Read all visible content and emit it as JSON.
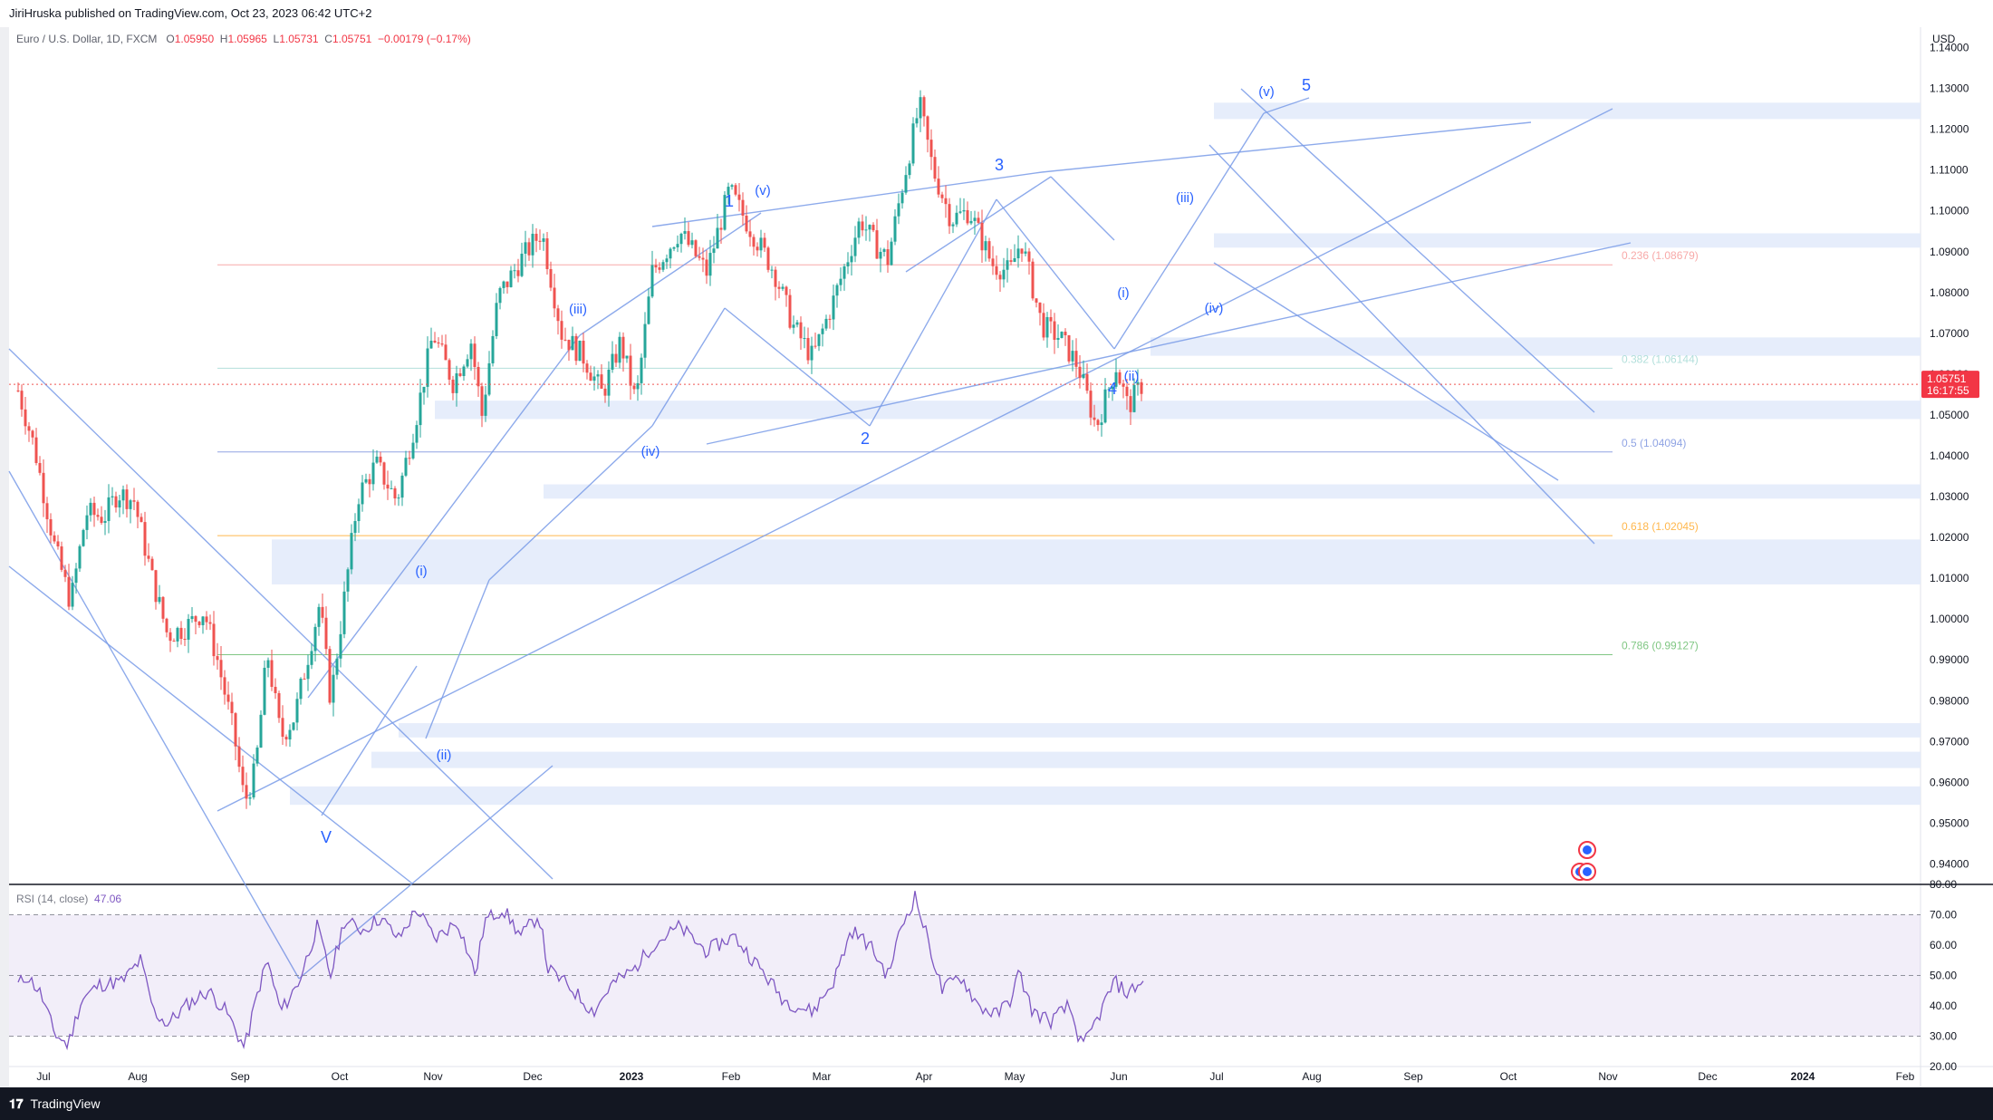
{
  "header": {
    "published_by": "JiriHruska published on TradingView.com, Oct 23, 2023 06:42 UTC+2"
  },
  "legend": {
    "symbol": "Euro / U.S. Dollar, 1D, FXCM",
    "o_label": "O",
    "o": "1.05950",
    "h_label": "H",
    "h": "1.05965",
    "l_label": "L",
    "l": "1.05731",
    "c_label": "C",
    "c": "1.05751",
    "change": "−0.00179 (−0.17%)"
  },
  "currency": "USD",
  "rsi": {
    "label": "RSI (14, close)",
    "value": "47.06"
  },
  "footer": {
    "logo": "𝟏𝟕",
    "brand": "TradingView"
  },
  "colors": {
    "up": "#26a69a",
    "down": "#ef5350",
    "accent": "#2962ff",
    "rsi": "#7e57c2",
    "zone": "#e3ebfb"
  },
  "chart_data": [
    {
      "type": "candlestick",
      "symbol": "EURUSD",
      "timeframe": "1D",
      "ylim": [
        0.935,
        1.145
      ],
      "y_ticks": [
        "1.14000",
        "1.13000",
        "1.12000",
        "1.11000",
        "1.10000",
        "1.09000",
        "1.08000",
        "1.07000",
        "1.06000",
        "1.05000",
        "1.04000",
        "1.03000",
        "1.02000",
        "1.01000",
        "1.00000",
        "0.99000",
        "0.98000",
        "0.97000",
        "0.96000",
        "0.95000",
        "0.94000"
      ],
      "x_ticks": [
        "Jul",
        "Aug",
        "Sep",
        "Oct",
        "Nov",
        "Dec",
        "2023",
        "Feb",
        "Mar",
        "Apr",
        "May",
        "Jun",
        "Jul",
        "Aug",
        "Sep",
        "Oct",
        "Nov",
        "Dec",
        "2024",
        "Feb"
      ],
      "current_price": {
        "value": "1.05751",
        "countdown": "16:17:55"
      },
      "price_path": [
        [
          0,
          1.056
        ],
        [
          18,
          1.042
        ],
        [
          40,
          1.018
        ],
        [
          58,
          1.004
        ],
        [
          75,
          1.026
        ],
        [
          95,
          1.025
        ],
        [
          110,
          1.031
        ],
        [
          128,
          1.029
        ],
        [
          148,
          1.01
        ],
        [
          165,
          0.996
        ],
        [
          185,
          0.998
        ],
        [
          205,
          1.002
        ],
        [
          220,
          0.99
        ],
        [
          238,
          0.972
        ],
        [
          250,
          0.955
        ],
        [
          262,
          0.963
        ],
        [
          275,
          0.992
        ],
        [
          290,
          0.971
        ],
        [
          305,
          0.976
        ],
        [
          320,
          0.991
        ],
        [
          333,
          1.004
        ],
        [
          345,
          0.98
        ],
        [
          360,
          1.005
        ],
        [
          375,
          1.03
        ],
        [
          395,
          1.038
        ],
        [
          418,
          1.029
        ],
        [
          440,
          1.05
        ],
        [
          458,
          1.07
        ],
        [
          480,
          1.058
        ],
        [
          500,
          1.068
        ],
        [
          512,
          1.05
        ],
        [
          530,
          1.079
        ],
        [
          555,
          1.088
        ],
        [
          578,
          1.095
        ],
        [
          600,
          1.07
        ],
        [
          625,
          1.064
        ],
        [
          645,
          1.055
        ],
        [
          665,
          1.068
        ],
        [
          682,
          1.053
        ],
        [
          700,
          1.085
        ],
        [
          730,
          1.095
        ],
        [
          760,
          1.085
        ],
        [
          785,
          1.105
        ],
        [
          810,
          1.095
        ],
        [
          835,
          1.085
        ],
        [
          855,
          1.072
        ],
        [
          877,
          1.064
        ],
        [
          900,
          1.078
        ],
        [
          930,
          1.098
        ],
        [
          945,
          1.092
        ],
        [
          960,
          1.088
        ],
        [
          975,
          1.105
        ],
        [
          995,
          1.126
        ],
        [
          1010,
          1.11
        ],
        [
          1030,
          1.098
        ],
        [
          1050,
          1.1
        ],
        [
          1075,
          1.087
        ],
        [
          1095,
          1.085
        ],
        [
          1107,
          1.093
        ],
        [
          1130,
          1.072
        ],
        [
          1150,
          1.069
        ],
        [
          1170,
          1.062
        ],
        [
          1190,
          1.047
        ],
        [
          1212,
          1.062
        ],
        [
          1225,
          1.052
        ],
        [
          1242,
          1.058
        ]
      ],
      "annotations": {
        "major_waves": [
          "V",
          "1",
          "2",
          "3",
          "4",
          "5"
        ],
        "minor_waves": [
          "(i)",
          "(ii)",
          "(iii)",
          "(iv)",
          "(v)",
          "(iii)",
          "(iv)",
          "(v)",
          "(i)",
          "(ii)",
          "(iii)",
          "(iv)",
          "(v)"
        ],
        "fibonacci": [
          {
            "label": "0.236 (1.08679)",
            "value": 1.08679,
            "color": "#f7a9a8"
          },
          {
            "label": "0.382 (1.06144)",
            "value": 1.06144,
            "color": "#b2dfdb"
          },
          {
            "label": "0.5 (1.04094)",
            "value": 1.04094,
            "color": "#90a4e4"
          },
          {
            "label": "0.618 (1.02045)",
            "value": 1.02045,
            "color": "#ffb74d"
          },
          {
            "label": "0.786 (0.99127)",
            "value": 0.99127,
            "color": "#81c784"
          }
        ],
        "zones": [
          [
            1.1225,
            1.1265
          ],
          [
            1.091,
            1.0945
          ],
          [
            1.0645,
            1.069
          ],
          [
            1.049,
            1.0535
          ],
          [
            1.0295,
            1.033
          ],
          [
            1.0085,
            1.0195
          ],
          [
            0.971,
            0.9745
          ],
          [
            0.9635,
            0.9675
          ],
          [
            0.9545,
            0.959
          ]
        ]
      }
    },
    {
      "type": "line",
      "name": "RSI (14, close)",
      "ylim": [
        20,
        80
      ],
      "y_ticks": [
        "80.00",
        "70.00",
        "60.00",
        "50.00",
        "40.00",
        "30.00",
        "20.00"
      ],
      "bands": [
        30,
        50,
        70
      ],
      "last_value": 47.06,
      "path": [
        [
          0,
          47
        ],
        [
          10,
          50
        ],
        [
          25,
          44
        ],
        [
          40,
          31
        ],
        [
          55,
          27
        ],
        [
          70,
          42
        ],
        [
          90,
          47
        ],
        [
          115,
          48
        ],
        [
          135,
          55
        ],
        [
          150,
          38
        ],
        [
          165,
          34
        ],
        [
          185,
          40
        ],
        [
          210,
          45
        ],
        [
          230,
          38
        ],
        [
          250,
          26
        ],
        [
          265,
          45
        ],
        [
          275,
          55
        ],
        [
          290,
          38
        ],
        [
          310,
          48
        ],
        [
          330,
          66
        ],
        [
          345,
          50
        ],
        [
          360,
          68
        ],
        [
          380,
          65
        ],
        [
          400,
          69
        ],
        [
          420,
          62
        ],
        [
          440,
          72
        ],
        [
          460,
          62
        ],
        [
          485,
          68
        ],
        [
          505,
          50
        ],
        [
          515,
          68
        ],
        [
          535,
          72
        ],
        [
          555,
          63
        ],
        [
          575,
          70
        ],
        [
          585,
          52
        ],
        [
          610,
          46
        ],
        [
          635,
          38
        ],
        [
          655,
          47
        ],
        [
          680,
          52
        ],
        [
          700,
          60
        ],
        [
          730,
          66
        ],
        [
          760,
          58
        ],
        [
          790,
          63
        ],
        [
          820,
          52
        ],
        [
          845,
          42
        ],
        [
          860,
          40
        ],
        [
          877,
          38
        ],
        [
          900,
          48
        ],
        [
          920,
          65
        ],
        [
          940,
          60
        ],
        [
          960,
          50
        ],
        [
          975,
          66
        ],
        [
          990,
          76
        ],
        [
          1005,
          61
        ],
        [
          1020,
          45
        ],
        [
          1040,
          50
        ],
        [
          1060,
          40
        ],
        [
          1080,
          37
        ],
        [
          1095,
          42
        ],
        [
          1105,
          51
        ],
        [
          1120,
          38
        ],
        [
          1140,
          35
        ],
        [
          1160,
          40
        ],
        [
          1175,
          26
        ],
        [
          1195,
          38
        ],
        [
          1210,
          48
        ],
        [
          1225,
          44
        ],
        [
          1240,
          48
        ]
      ]
    }
  ]
}
